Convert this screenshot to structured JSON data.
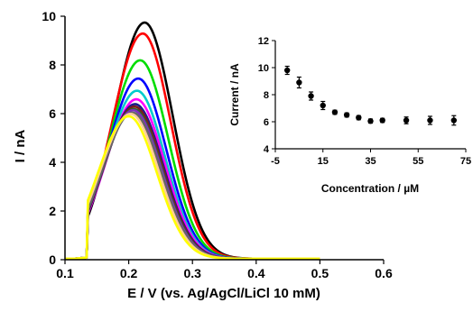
{
  "chart_data": [
    {
      "type": "line",
      "xlabel": "E / V (vs. Ag/AgCl/LiCl 10 mM)",
      "ylabel": "I / nA",
      "xlim": [
        0.1,
        0.6
      ],
      "ylim": [
        0,
        10
      ],
      "xticks": [
        "0.1",
        "0.2",
        "0.3",
        "0.4",
        "0.5",
        "0.6"
      ],
      "yticks": [
        "0",
        "2",
        "4",
        "6",
        "8",
        "10"
      ],
      "x_range": [
        0.1,
        0.5
      ],
      "grid": false,
      "series": [
        {
          "color": "#000000",
          "peak_x": 0.225,
          "peak_y": 9.7
        },
        {
          "color": "#ff0000",
          "peak_x": 0.222,
          "peak_y": 9.25
        },
        {
          "color": "#00dd00",
          "peak_x": 0.218,
          "peak_y": 8.15
        },
        {
          "color": "#0000ff",
          "peak_x": 0.215,
          "peak_y": 7.4
        },
        {
          "color": "#00cccc",
          "peak_x": 0.213,
          "peak_y": 6.9
        },
        {
          "color": "#ff00ff",
          "peak_x": 0.212,
          "peak_y": 6.55
        },
        {
          "color": "#1a1a8a",
          "peak_x": 0.21,
          "peak_y": 6.35
        },
        {
          "color": "#7a1a1a",
          "peak_x": 0.209,
          "peak_y": 6.25
        },
        {
          "color": "#2f5f2f",
          "peak_x": 0.208,
          "peak_y": 6.15
        },
        {
          "color": "#7f2fbf",
          "peak_x": 0.207,
          "peak_y": 6.1
        },
        {
          "color": "#666666",
          "peak_x": 0.206,
          "peak_y": 6.0
        },
        {
          "color": "#ffcc99",
          "peak_x": 0.203,
          "peak_y": 5.95
        },
        {
          "color": "#ffff00",
          "peak_x": 0.2,
          "peak_y": 5.85
        }
      ]
    },
    {
      "type": "scatter",
      "xlabel": "Concentration / µM",
      "ylabel": "Current / nA",
      "xlim": [
        -5,
        75
      ],
      "ylim": [
        4,
        12
      ],
      "xticks": [
        "-5",
        "15",
        "35",
        "55",
        "75"
      ],
      "yticks": [
        "4",
        "6",
        "8",
        "10",
        "12"
      ],
      "x": [
        0,
        5,
        10,
        15,
        20,
        25,
        30,
        35,
        40,
        50,
        60,
        70
      ],
      "y": [
        9.8,
        8.9,
        7.9,
        7.2,
        6.7,
        6.5,
        6.3,
        6.05,
        6.1,
        6.1,
        6.1,
        6.1
      ],
      "error": [
        0.3,
        0.4,
        0.3,
        0.3,
        0.15,
        0.15,
        0.15,
        0.15,
        0.15,
        0.25,
        0.3,
        0.35
      ]
    }
  ]
}
